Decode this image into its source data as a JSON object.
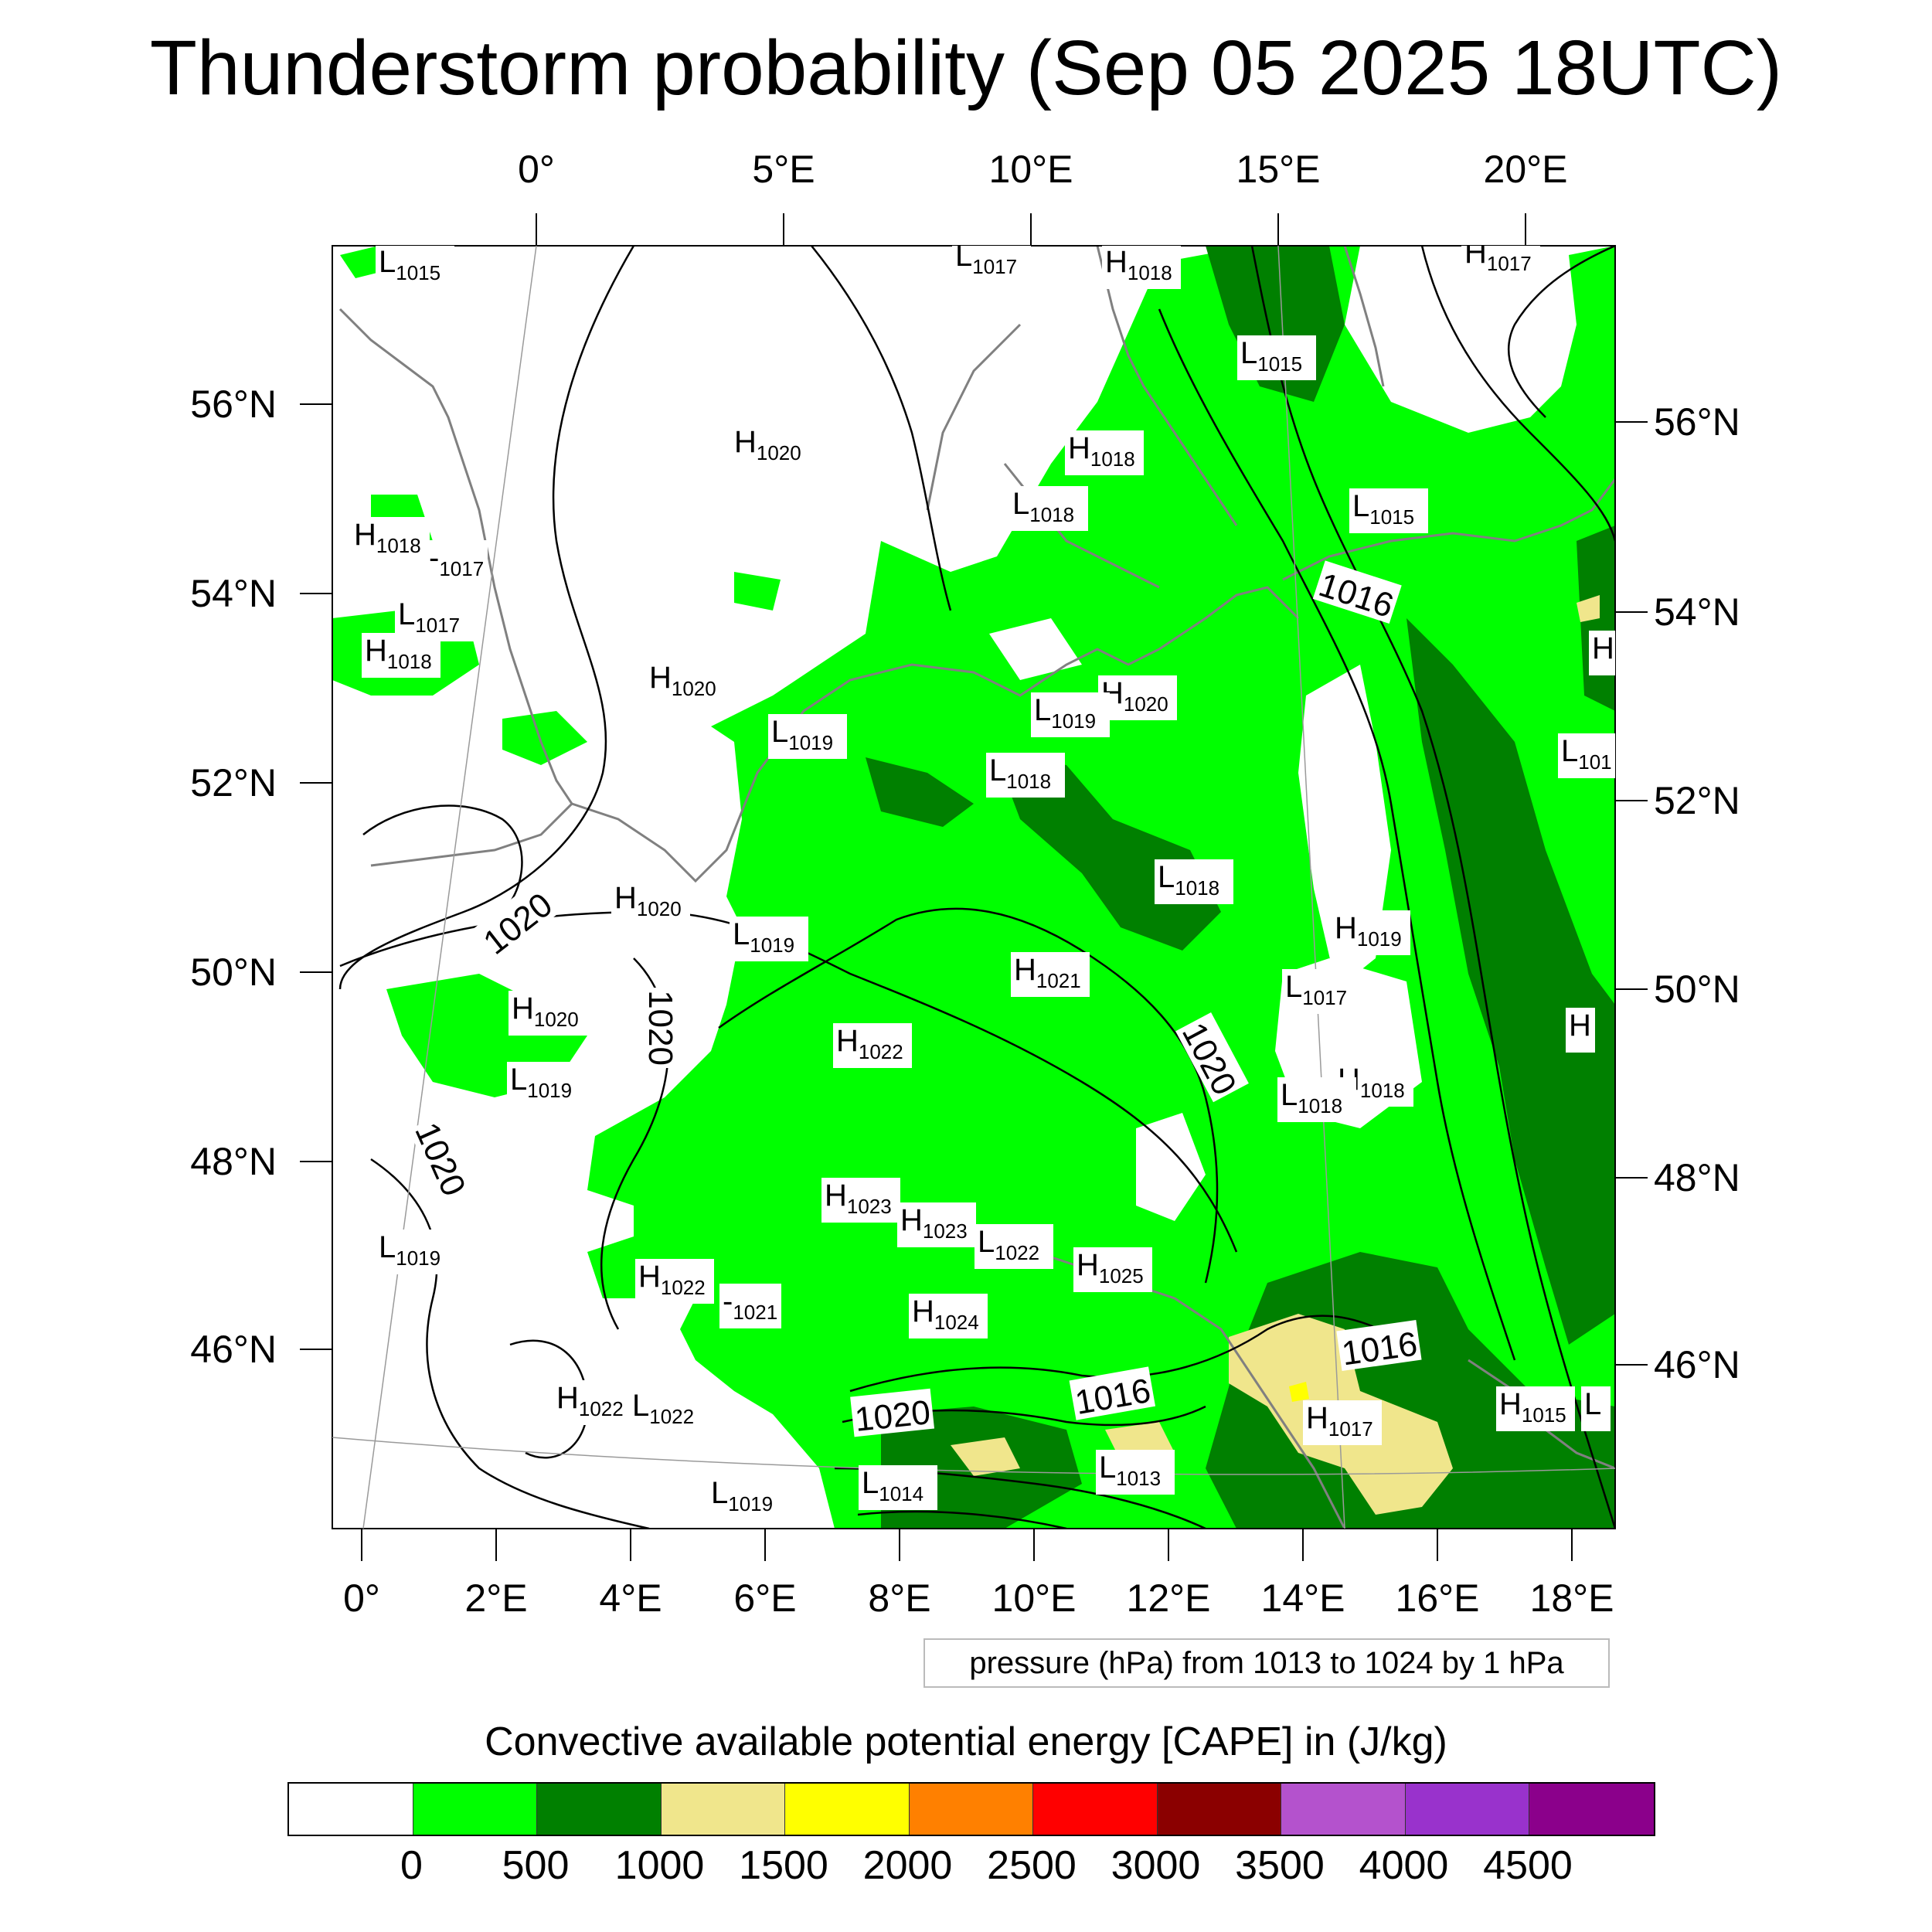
{
  "title": "Thunderstorm probability (Sep 05 2025 18UTC)",
  "top_lon_labels": [
    "0°",
    "5°E",
    "10°E",
    "15°E",
    "20°E"
  ],
  "bottom_lon_labels": [
    "0°",
    "2°E",
    "4°E",
    "6°E",
    "8°E",
    "10°E",
    "12°E",
    "14°E",
    "16°E",
    "18°E"
  ],
  "left_lat_labels": [
    "56°N",
    "54°N",
    "52°N",
    "50°N",
    "48°N",
    "46°N"
  ],
  "right_lat_labels": [
    "56°N",
    "54°N",
    "52°N",
    "50°N",
    "48°N",
    "46°N"
  ],
  "pressure_note": "pressure (hPa) from 1013 to 1024 by 1 hPa",
  "legend_title": "Convective available potential energy [CAPE] in (J/kg)",
  "colorbar": {
    "colors": [
      "#ffffff",
      "#00ff00",
      "#008000",
      "#f0e68c",
      "#ffff00",
      "#ff8000",
      "#ff0000",
      "#8b0000",
      "#b452cd",
      "#9932cc",
      "#8b008b"
    ],
    "labels": [
      "0",
      "500",
      "1000",
      "1500",
      "2000",
      "2500",
      "3000",
      "3500",
      "4000",
      "4500"
    ]
  },
  "isobar_labels": [
    "1020",
    "1020",
    "1020",
    "1020",
    "1016",
    "1016",
    "1016",
    "1020"
  ],
  "pressure_centers": [
    {
      "t": "L",
      "v": "1015"
    },
    {
      "t": "L",
      "v": "1017"
    },
    {
      "t": "H",
      "v": "1018"
    },
    {
      "t": "H",
      "v": "1017"
    },
    {
      "t": "H",
      "v": "1020"
    },
    {
      "t": "L",
      "v": "1015"
    },
    {
      "t": "H",
      "v": "1018"
    },
    {
      "t": "L",
      "v": "1018"
    },
    {
      "t": "L",
      "v": "1015"
    },
    {
      "t": "H",
      "v": "1018"
    },
    {
      "t": "",
      "v": "1017"
    },
    {
      "t": "L",
      "v": "1017"
    },
    {
      "t": "H",
      "v": "1018"
    },
    {
      "t": "H",
      "v": "1020"
    },
    {
      "t": "L",
      "v": "1019"
    },
    {
      "t": "H",
      "v": "1020"
    },
    {
      "t": "L",
      "v": "1019"
    },
    {
      "t": "L",
      "v": "1018"
    },
    {
      "t": "L",
      "v": "101"
    },
    {
      "t": "H",
      "v": "1020"
    },
    {
      "t": "L",
      "v": "1019"
    },
    {
      "t": "L",
      "v": "1018"
    },
    {
      "t": "H",
      "v": "1019"
    },
    {
      "t": "H",
      "v": "1021"
    },
    {
      "t": "H",
      "v": "1020"
    },
    {
      "t": "L",
      "v": "1017"
    },
    {
      "t": "H",
      "v": "1022"
    },
    {
      "t": "L",
      "v": "1019"
    },
    {
      "t": "H",
      "v": "1018"
    },
    {
      "t": "L",
      "v": "1018"
    },
    {
      "t": "H",
      "v": "1023"
    },
    {
      "t": "H",
      "v": "1023"
    },
    {
      "t": "L",
      "v": "1022"
    },
    {
      "t": "H",
      "v": "1025"
    },
    {
      "t": "L",
      "v": "1019"
    },
    {
      "t": "H",
      "v": "1022"
    },
    {
      "t": "",
      "v": "1021"
    },
    {
      "t": "H",
      "v": "1024"
    },
    {
      "t": "H",
      "v": "1022"
    },
    {
      "t": "L",
      "v": "1022"
    },
    {
      "t": "H",
      "v": "1017"
    },
    {
      "t": "H",
      "v": "1015"
    },
    {
      "t": "L",
      "v": "1014"
    },
    {
      "t": "L",
      "v": "1013"
    },
    {
      "t": "L",
      "v": "1019"
    },
    {
      "t": "H",
      "v": ""
    },
    {
      "t": "H",
      "v": ""
    },
    {
      "t": "L",
      "v": ""
    }
  ]
}
